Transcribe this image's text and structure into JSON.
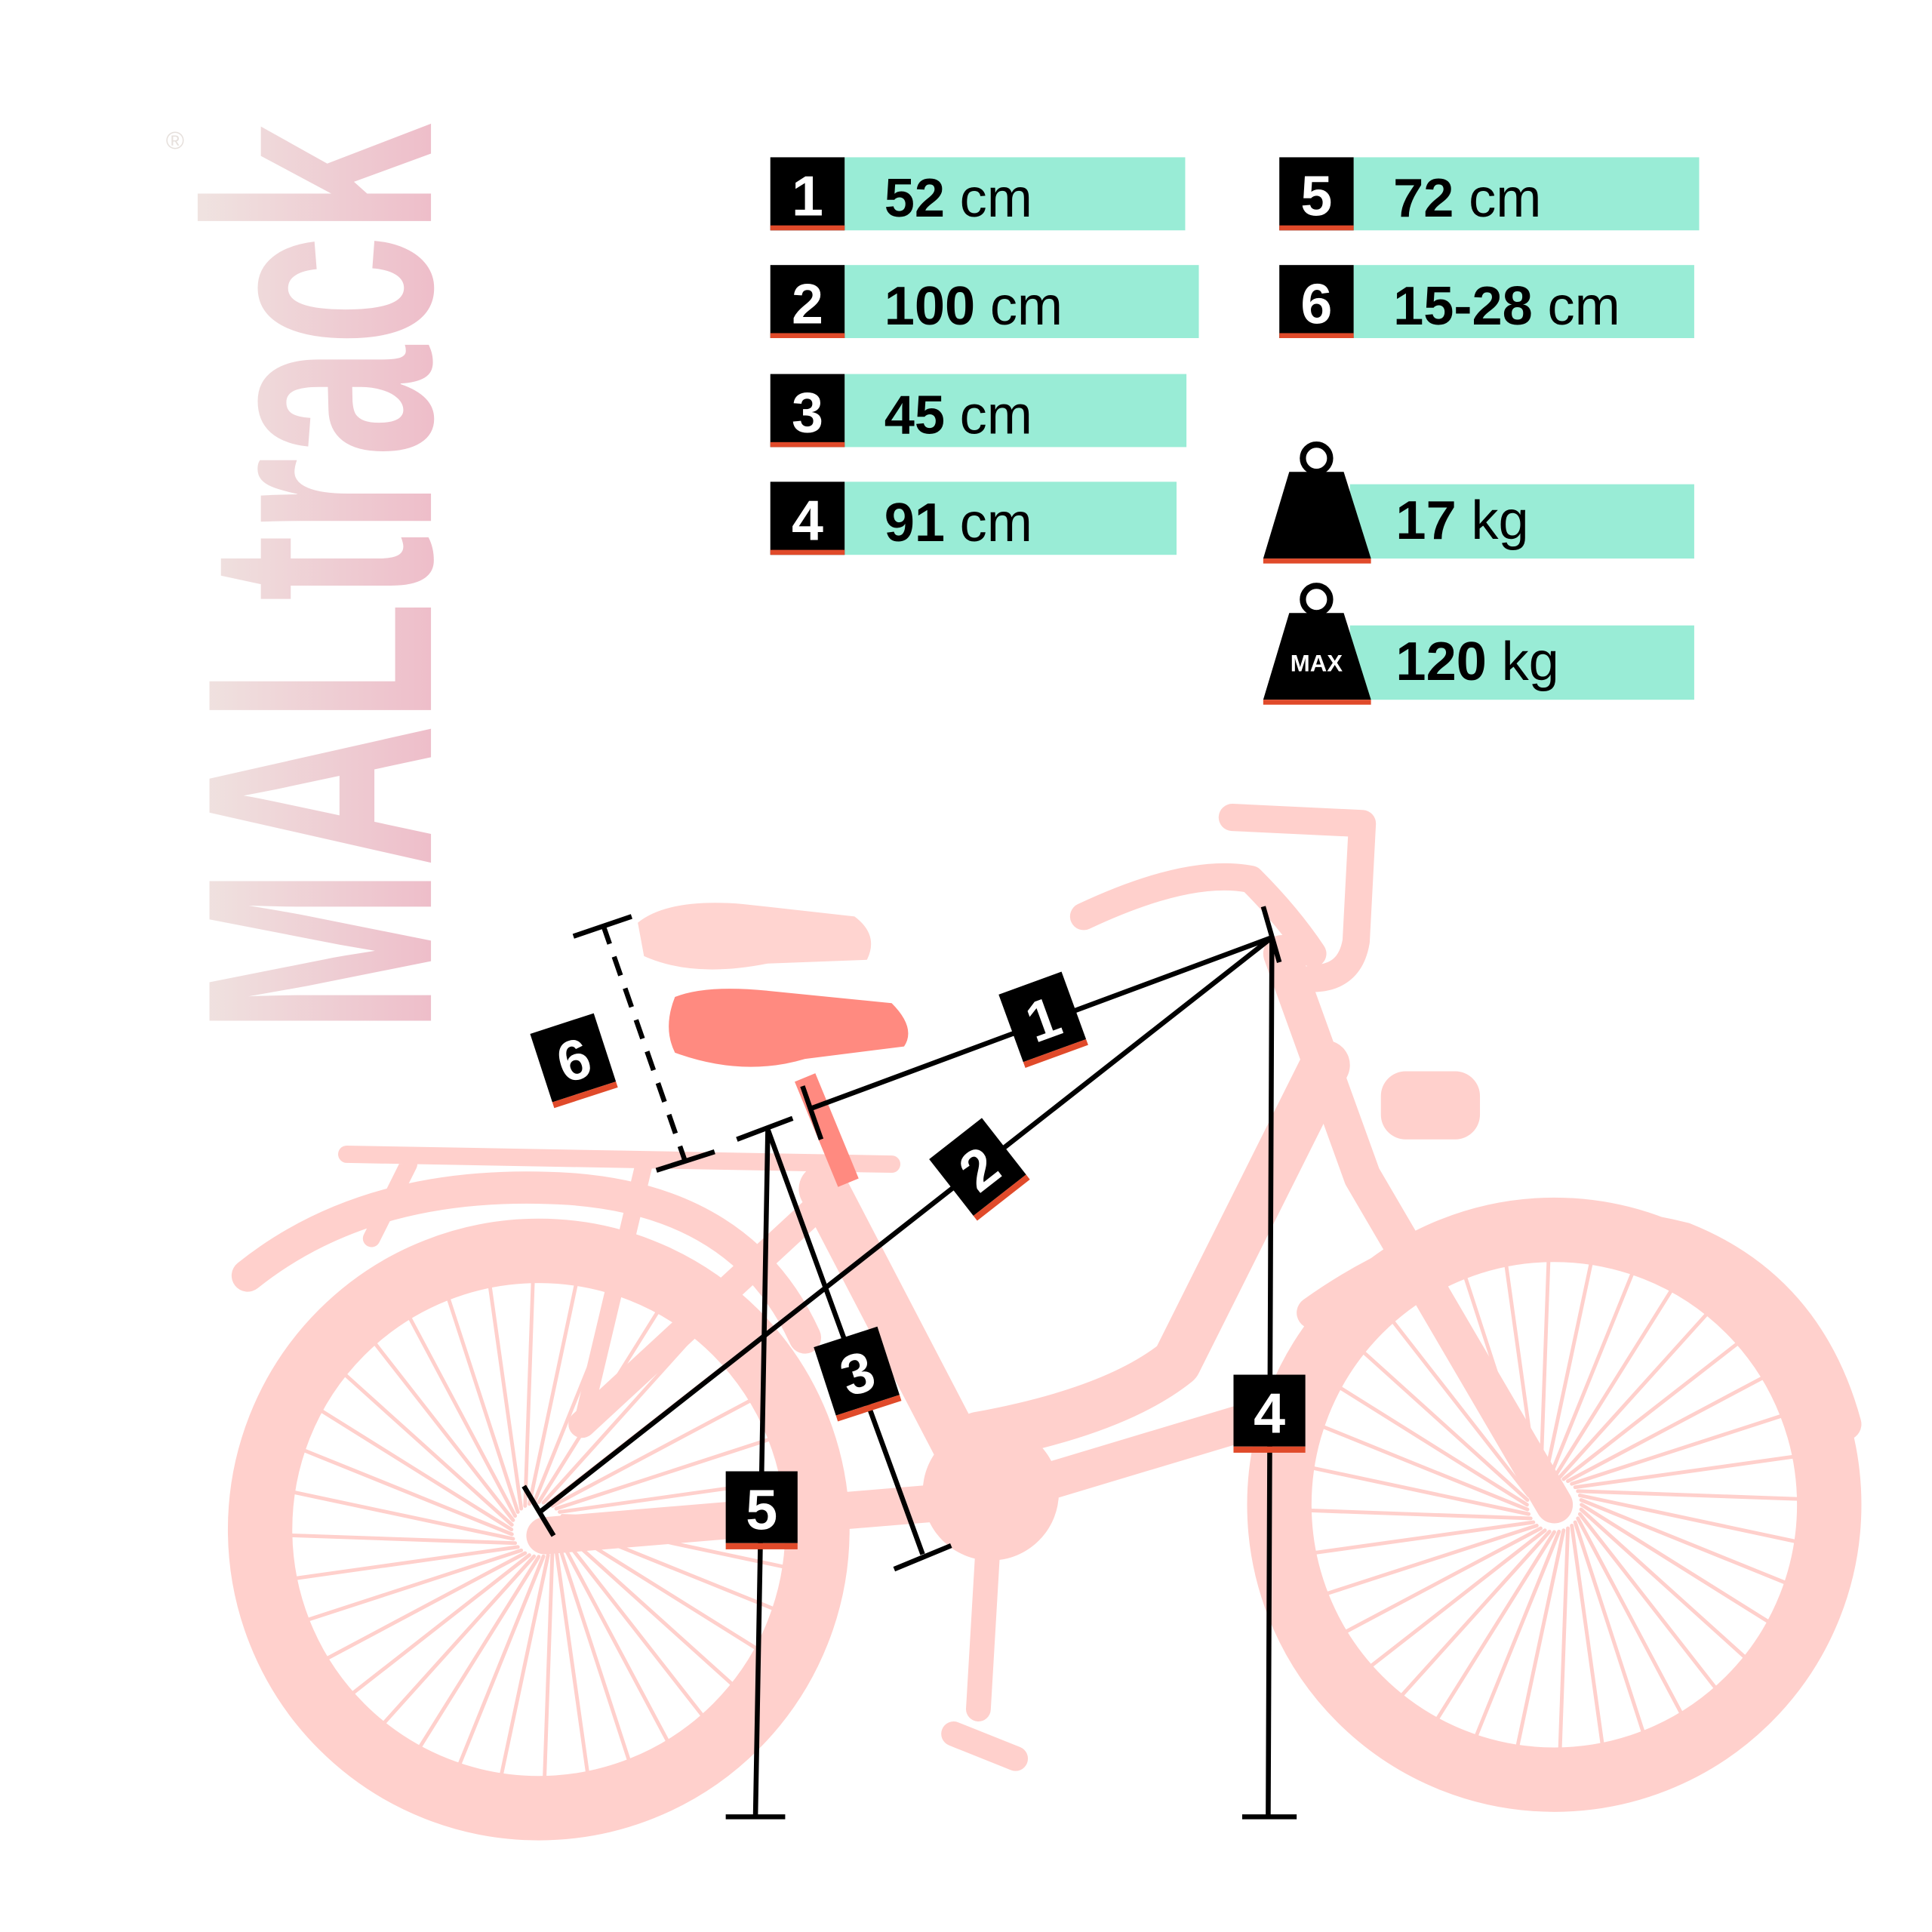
{
  "brand": {
    "logo_text": "MALtrack",
    "registered_mark": "®"
  },
  "colors": {
    "spec_bg": "#99ECD6",
    "accent": "#E04A2A",
    "badge": "#000000",
    "bike": "#FFD0CC",
    "saddle_highlight": "#FF8A80"
  },
  "specs": [
    {
      "id": "1",
      "value": "52",
      "unit": "cm"
    },
    {
      "id": "2",
      "value": "100",
      "unit": "cm"
    },
    {
      "id": "3",
      "value": "45",
      "unit": "cm"
    },
    {
      "id": "4",
      "value": "91",
      "unit": "cm"
    },
    {
      "id": "5",
      "value": "72",
      "unit": "cm"
    },
    {
      "id": "6",
      "value": "15-28",
      "unit": "cm"
    }
  ],
  "weights": [
    {
      "icon": "weight-icon",
      "label": "",
      "value": "17",
      "unit": "kg"
    },
    {
      "icon": "max-weight-icon",
      "label": "MAX",
      "value": "120",
      "unit": "kg"
    }
  ]
}
